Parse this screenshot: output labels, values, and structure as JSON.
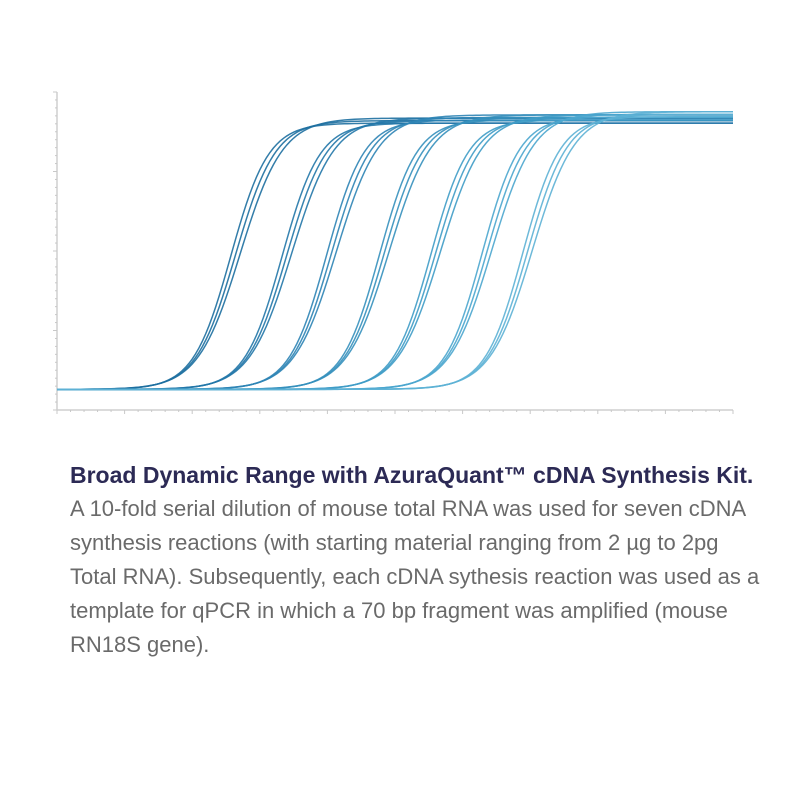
{
  "chart_data": {
    "type": "line",
    "title": "",
    "xlabel": "",
    "ylabel": "",
    "grid": false,
    "legend": "none",
    "xlim": [
      0,
      50
    ],
    "ylim": [
      0,
      100
    ],
    "colors": [
      "#1d6fa0",
      "#2277a9",
      "#2d84b5",
      "#3590bd",
      "#3f9cc6",
      "#4ba6ce",
      "#5db1d5"
    ],
    "series": [
      {
        "cycle_midpoint": 13.2,
        "plateau": 91,
        "replicates": 3
      },
      {
        "cycle_midpoint": 17.0,
        "plateau": 91,
        "replicates": 3
      },
      {
        "cycle_midpoint": 20.3,
        "plateau": 92,
        "replicates": 3
      },
      {
        "cycle_midpoint": 24.2,
        "plateau": 92,
        "replicates": 3
      },
      {
        "cycle_midpoint": 28.0,
        "plateau": 92,
        "replicates": 3
      },
      {
        "cycle_midpoint": 31.8,
        "plateau": 93,
        "replicates": 3
      },
      {
        "cycle_midpoint": 34.8,
        "plateau": 93,
        "replicates": 3
      }
    ]
  },
  "caption": {
    "title": "Broad Dynamic Range with AzuraQuant™ cDNA Synthesis Kit.",
    "body": "A 10-fold serial dilution of mouse total RNA was used for seven cDNA synthesis reactions (with starting material ranging from 2 µg to 2pg Total RNA). Subsequently, each cDNA sythesis reaction was used as a template for qPCR in which a 70 bp fragment was amplified (mouse RN18S gene)."
  }
}
